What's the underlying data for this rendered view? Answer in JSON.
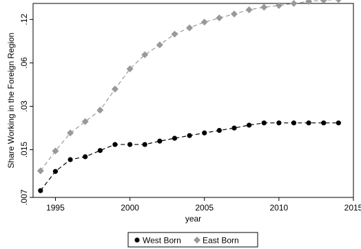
{
  "chart_data": {
    "type": "line",
    "xlabel": "year",
    "ylabel": "Share Working in the Foreign Region",
    "y_scale": "log",
    "xlim": [
      1993.5,
      2015
    ],
    "ylim": [
      0.007,
      0.155
    ],
    "x_ticks": [
      1995,
      2000,
      2005,
      2010,
      2015
    ],
    "y_ticks": [
      0.007,
      0.015,
      0.03,
      0.06,
      0.12
    ],
    "y_tick_labels": [
      ".007",
      ".015",
      ".03",
      ".06",
      ".12"
    ],
    "grid": false,
    "legend_position": "bottom",
    "x": [
      1994,
      1995,
      1996,
      1997,
      1998,
      1999,
      2000,
      2001,
      2002,
      2003,
      2004,
      2005,
      2006,
      2007,
      2008,
      2009,
      2010,
      2011,
      2012,
      2013,
      2014
    ],
    "series": [
      {
        "name": "West Born",
        "color": "#000000",
        "marker": "circle",
        "values": [
          0.0078,
          0.0106,
          0.0128,
          0.0134,
          0.0148,
          0.0163,
          0.0163,
          0.0163,
          0.0172,
          0.018,
          0.0188,
          0.0196,
          0.0204,
          0.0212,
          0.0222,
          0.023,
          0.023,
          0.023,
          0.023,
          0.023,
          0.023
        ]
      },
      {
        "name": "East Born",
        "color": "#999999",
        "marker": "diamond",
        "values": [
          0.0107,
          0.0147,
          0.0196,
          0.0235,
          0.0282,
          0.0395,
          0.0545,
          0.0683,
          0.08,
          0.095,
          0.105,
          0.115,
          0.123,
          0.131,
          0.14,
          0.146,
          0.15,
          0.155,
          0.16,
          0.163,
          0.165
        ]
      }
    ]
  }
}
